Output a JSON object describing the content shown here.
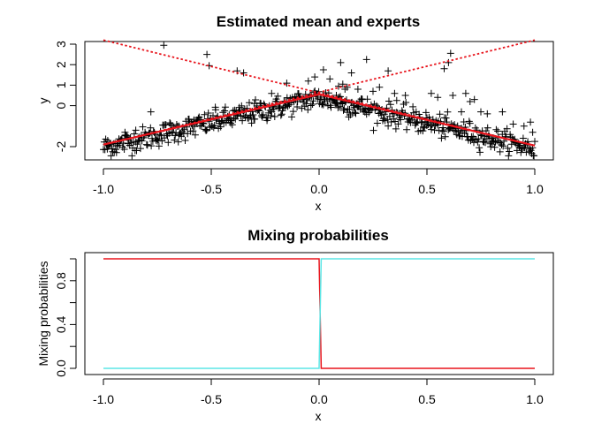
{
  "chart_data": [
    {
      "type": "scatter",
      "title": "Estimated mean and experts",
      "xlabel": "x",
      "ylabel": "y",
      "xlim": [
        -1.0,
        1.0
      ],
      "ylim": [
        -2.5,
        3.2
      ],
      "xticks": [
        -1.0,
        -0.5,
        0.0,
        0.5,
        1.0
      ],
      "xtick_labels": [
        "-1.0",
        "-0.5",
        "0.0",
        "0.5",
        "1.0"
      ],
      "yticks": [
        -2,
        0,
        1,
        2,
        3
      ],
      "ytick_labels": [
        "-2",
        "0",
        "1",
        "2",
        "3"
      ],
      "grid": false,
      "points_description": "noisy samples around an inverted-V; point marker '+'",
      "point_color": "#000000",
      "outliers": [
        [
          -0.98,
          -1.7
        ],
        [
          -0.9,
          -1.3
        ],
        [
          -0.85,
          -1.2
        ],
        [
          -0.78,
          -0.3
        ],
        [
          -0.72,
          2.95
        ],
        [
          -0.65,
          -1.0
        ],
        [
          -0.58,
          -0.7
        ],
        [
          -0.52,
          2.5
        ],
        [
          -0.51,
          1.95
        ],
        [
          -0.48,
          -0.2
        ],
        [
          -0.38,
          1.7
        ],
        [
          -0.35,
          1.6
        ],
        [
          -0.3,
          0.1
        ],
        [
          -0.22,
          0.6
        ],
        [
          -0.15,
          1.1
        ],
        [
          -0.1,
          0.2
        ],
        [
          -0.05,
          1.2
        ],
        [
          -0.02,
          1.4
        ],
        [
          0.02,
          1.75
        ],
        [
          0.05,
          1.3
        ],
        [
          0.08,
          0.5
        ],
        [
          0.1,
          2.1
        ],
        [
          0.12,
          0.8
        ],
        [
          0.1,
          0.3
        ],
        [
          0.09,
          0.95
        ],
        [
          0.11,
          1.05
        ],
        [
          0.13,
          0.9
        ],
        [
          0.15,
          1.6
        ],
        [
          0.18,
          0.8
        ],
        [
          0.22,
          2.25
        ],
        [
          0.2,
          0.3
        ],
        [
          0.25,
          0.7
        ],
        [
          0.28,
          0.9
        ],
        [
          0.32,
          1.7
        ],
        [
          0.35,
          0.6
        ],
        [
          0.36,
          0.25
        ],
        [
          0.4,
          0.5
        ],
        [
          0.45,
          -0.3
        ],
        [
          0.5,
          -0.6
        ],
        [
          0.52,
          0.6
        ],
        [
          0.55,
          0.4
        ],
        [
          0.58,
          1.8
        ],
        [
          0.6,
          2.1
        ],
        [
          0.61,
          2.55
        ],
        [
          0.62,
          0.5
        ],
        [
          0.66,
          -0.3
        ],
        [
          0.68,
          0.6
        ],
        [
          0.7,
          0.2
        ],
        [
          0.72,
          0.3
        ],
        [
          0.75,
          -0.3
        ],
        [
          0.78,
          -0.4
        ],
        [
          0.8,
          -1.6
        ],
        [
          0.85,
          -0.3
        ],
        [
          0.9,
          -0.9
        ],
        [
          0.95,
          -1.0
        ],
        [
          0.98,
          -0.8
        ],
        [
          0.99,
          -1.3
        ]
      ],
      "series": [
        {
          "type": "line",
          "style": "solid",
          "color": "#e8141c",
          "x": [
            -1.0,
            0.0,
            1.0
          ],
          "y": [
            -1.9,
            0.55,
            -1.95
          ]
        },
        {
          "type": "line",
          "style": "dotted",
          "color": "#e8141c",
          "x": [
            -1.0,
            1.0
          ],
          "y": [
            3.2,
            -1.95
          ]
        },
        {
          "type": "line",
          "style": "dotted",
          "color": "#e8141c",
          "x": [
            -1.0,
            1.0
          ],
          "y": [
            -1.9,
            3.2
          ]
        }
      ]
    },
    {
      "type": "line",
      "title": "Mixing probabilities",
      "xlabel": "x",
      "ylabel": "Mixing probabilities",
      "xlim": [
        -1.0,
        1.0
      ],
      "ylim": [
        0.0,
        1.0
      ],
      "xticks": [
        -1.0,
        -0.5,
        0.0,
        0.5,
        1.0
      ],
      "xtick_labels": [
        "-1.0",
        "-0.5",
        "0.0",
        "0.5",
        "1.0"
      ],
      "yticks": [
        0.0,
        0.4,
        0.8
      ],
      "ytick_labels": [
        "0.0",
        "0.4",
        "0.8"
      ],
      "minor_yticks": [
        0.2,
        0.6,
        1.0
      ],
      "grid": false,
      "series": [
        {
          "color": "#e8141c",
          "x": [
            -1.0,
            0.0,
            0.01,
            1.0
          ],
          "y": [
            1.0,
            1.0,
            0.0,
            0.0
          ]
        },
        {
          "color": "#5ce6e6",
          "x": [
            -1.0,
            0.0,
            0.01,
            1.0
          ],
          "y": [
            0.0,
            0.0,
            1.0,
            1.0
          ]
        }
      ]
    }
  ]
}
